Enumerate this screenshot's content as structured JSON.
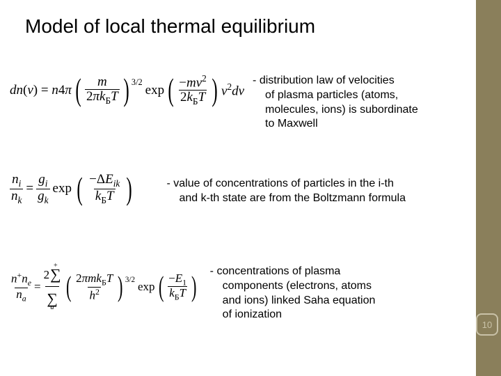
{
  "colors": {
    "sidebar_bg": "#8a7f5b",
    "badge_border": "#c9c2a8",
    "text": "#000000",
    "page_bg": "#ffffff"
  },
  "slide_number": "10",
  "title": "Model of local thermal equilibrium",
  "eq1": {
    "lhs": "dn(v) = n 4π",
    "frac1_num": "m",
    "frac1_den": "2πk_Б T",
    "exp1_label": "exp",
    "frac2_num": "mv²",
    "frac2_den": "2k_Б T",
    "tail": "v² dv",
    "power": "3/2"
  },
  "caption1_lead": "- distribution law of velocities",
  "caption1_rest": "of plasma particles (atoms, molecules, ions) is subordinate to Maxwell",
  "eq2": {
    "lhs_num": "n_i",
    "lhs_den": "n_k",
    "eq": " = ",
    "g_num": "g_i",
    "g_den": "g_k",
    "exp_label": "exp",
    "e_num": "ΔE_ik",
    "e_den": "k_Б T"
  },
  "caption2_lead": "- value of concentrations of particles in the i-th",
  "caption2_rest": "and k-th state are from the Boltzmann formula",
  "eq3": {
    "lhs_num": "n⁺ n_e",
    "lhs_den": "n_a",
    "eq": " = ",
    "coef_num_pre": "2",
    "coef_num_sumtop": "+",
    "coef_den_sub": "a",
    "mass_num": "2πm k_Б T",
    "mass_den": "h²",
    "power": "3/2",
    "exp_label": "exp",
    "e_num": "E_1",
    "e_den": "k_Б T"
  },
  "caption3_lead": "- concentrations of plasma",
  "caption3_rest": "components (electrons, atoms and ions) linked Saha equation of ionization"
}
